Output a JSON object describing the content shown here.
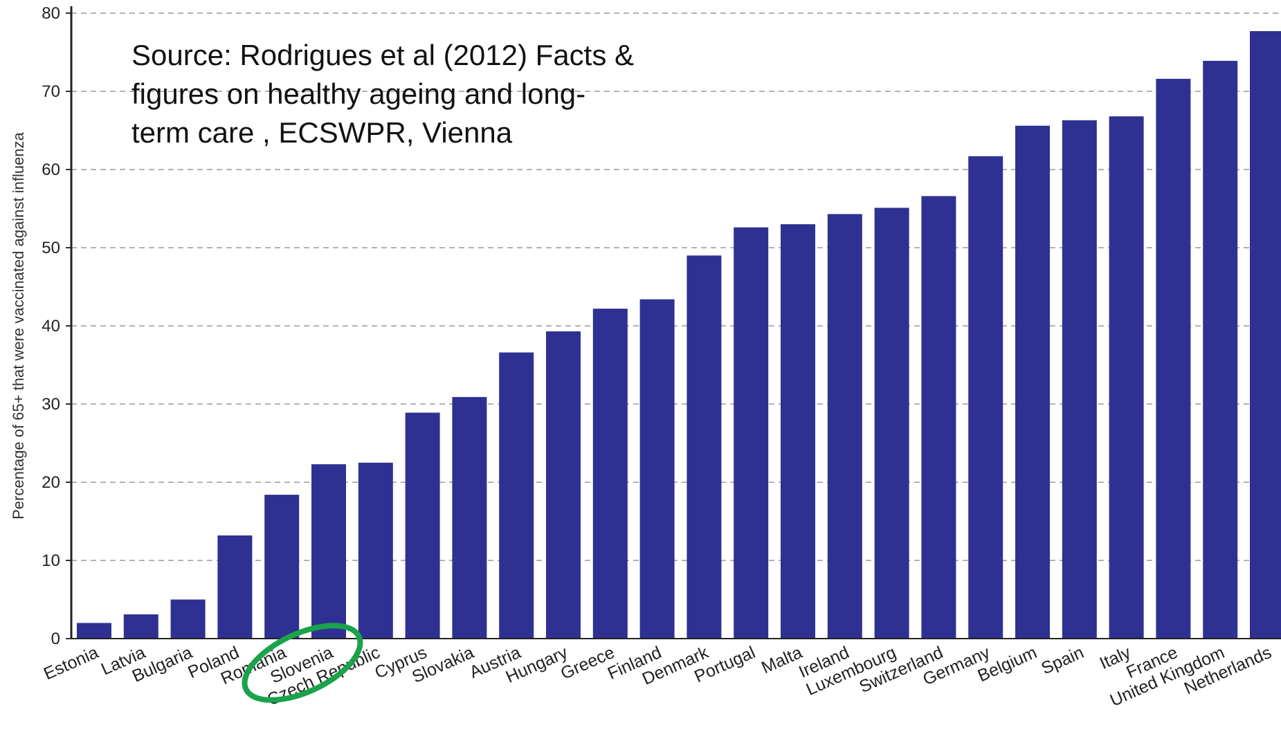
{
  "chart_data": {
    "type": "bar",
    "y_label": "Percentage of 65+ that were vaccinated against influenza",
    "annotation": [
      "Source: Rodrigues et al (2012) Facts &",
      "figures on healthy ageing and long-",
      "term care , ECSWPR, Vienna"
    ],
    "categories": [
      "Estonia",
      "Latvia",
      "Bulgaria",
      "Poland",
      "Romania",
      "Slovenia",
      "Czech Republic",
      "Cyprus",
      "Slovakia",
      "Austria",
      "Hungary",
      "Greece",
      "Finland",
      "Denmark",
      "Portugal",
      "Malta",
      "Ireland",
      "Luxembourg",
      "Switzerland",
      "Germany",
      "Belgium",
      "Spain",
      "Italy",
      "France",
      "United Kingdom",
      "Netherlands"
    ],
    "values": [
      2.0,
      3.1,
      5.0,
      13.2,
      18.4,
      22.3,
      22.5,
      28.9,
      30.9,
      36.6,
      39.3,
      42.2,
      43.4,
      49.0,
      52.6,
      53.0,
      54.3,
      55.1,
      56.6,
      61.7,
      65.6,
      66.3,
      66.8,
      71.6,
      73.9,
      77.7
    ],
    "color": "#2e3192",
    "ylim": [
      0,
      80
    ],
    "yticks": [
      0,
      10,
      20,
      30,
      40,
      50,
      60,
      70,
      80
    ],
    "grid": true
  }
}
